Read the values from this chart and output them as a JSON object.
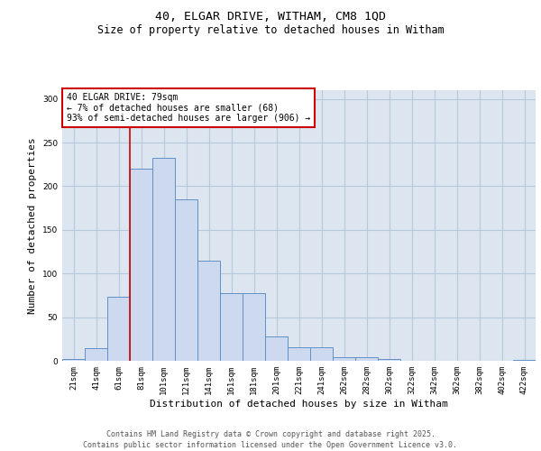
{
  "title_line1": "40, ELGAR DRIVE, WITHAM, CM8 1QD",
  "title_line2": "Size of property relative to detached houses in Witham",
  "xlabel": "Distribution of detached houses by size in Witham",
  "ylabel": "Number of detached properties",
  "categories": [
    "21sqm",
    "41sqm",
    "61sqm",
    "81sqm",
    "101sqm",
    "121sqm",
    "141sqm",
    "161sqm",
    "181sqm",
    "201sqm",
    "221sqm",
    "241sqm",
    "262sqm",
    "282sqm",
    "302sqm",
    "322sqm",
    "342sqm",
    "362sqm",
    "382sqm",
    "402sqm",
    "422sqm"
  ],
  "values": [
    2,
    14,
    73,
    220,
    232,
    185,
    115,
    78,
    78,
    28,
    16,
    16,
    4,
    4,
    2,
    0,
    0,
    0,
    0,
    0,
    1
  ],
  "bar_color": "#ccd9ee",
  "bar_edge_color": "#6090c8",
  "vline_color": "#cc0000",
  "vline_x_index": 3,
  "annotation_text": "40 ELGAR DRIVE: 79sqm\n← 7% of detached houses are smaller (68)\n93% of semi-detached houses are larger (906) →",
  "annotation_box_facecolor": "#ffffff",
  "annotation_box_edgecolor": "#cc0000",
  "ylim": [
    0,
    310
  ],
  "yticks": [
    0,
    50,
    100,
    150,
    200,
    250,
    300
  ],
  "grid_color": "#b8c8dc",
  "bg_color": "#dde6f0",
  "footer_line1": "Contains HM Land Registry data © Crown copyright and database right 2025.",
  "footer_line2": "Contains public sector information licensed under the Open Government Licence v3.0.",
  "title_fontsize": 9.5,
  "subtitle_fontsize": 8.5,
  "axis_label_fontsize": 8,
  "tick_fontsize": 6.5,
  "annotation_fontsize": 7,
  "footer_fontsize": 6
}
